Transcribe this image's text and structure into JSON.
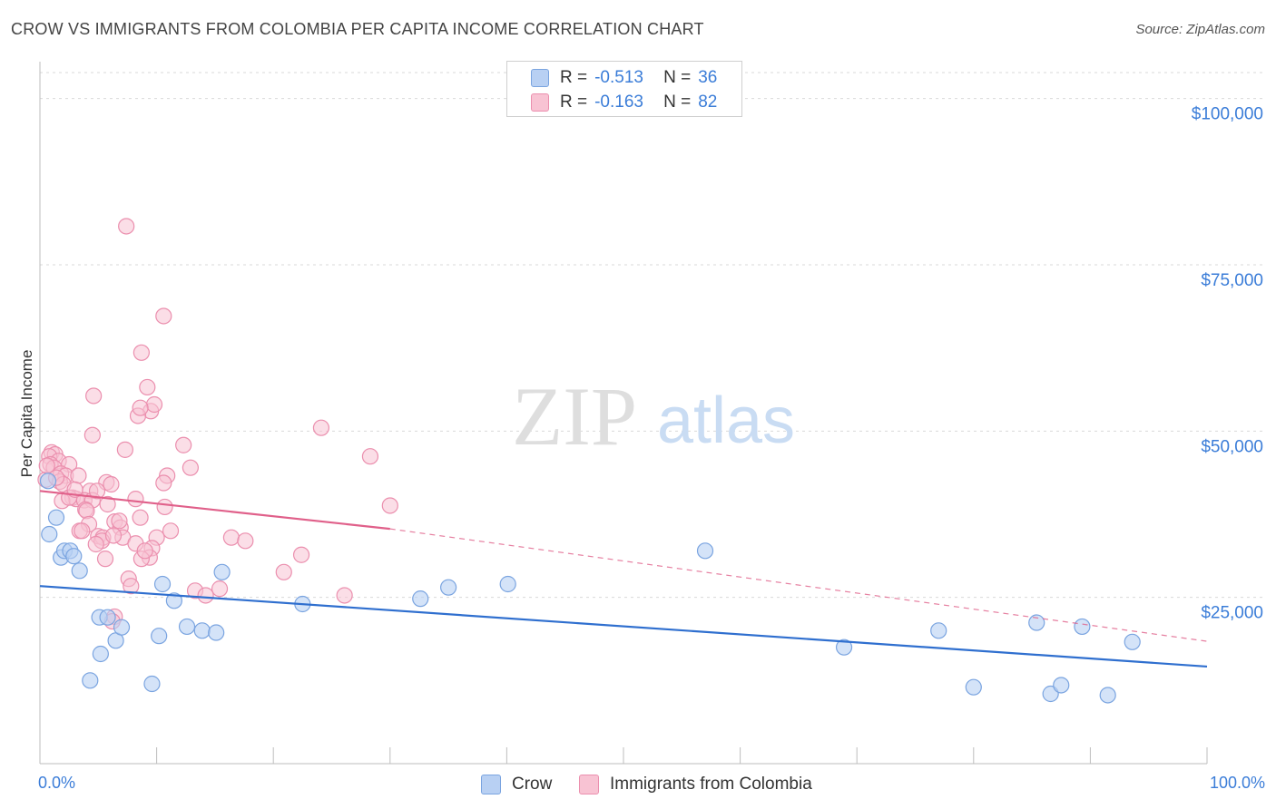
{
  "title": "CROW VS IMMIGRANTS FROM COLOMBIA PER CAPITA INCOME CORRELATION CHART",
  "source": "Source: ZipAtlas.com",
  "watermark": {
    "zip": "ZIP",
    "atlas": "atlas"
  },
  "colors": {
    "crow_fill": "#b8d0f3",
    "crow_stroke": "#7aa4e0",
    "crow_line": "#2f6fcf",
    "colombia_fill": "#f8c3d3",
    "colombia_stroke": "#eb8fae",
    "colombia_line": "#e0608a",
    "tick_text": "#3b7dd8",
    "grid": "#d9d9d9"
  },
  "legend": {
    "r_label": "R =",
    "n_label": "N =",
    "crow": {
      "r": "-0.513",
      "n": "36"
    },
    "colombia": {
      "r": "-0.163",
      "n": "82"
    }
  },
  "bottom_legend": {
    "crow": "Crow",
    "colombia": "Immigrants from Colombia"
  },
  "chart_data": {
    "type": "scatter",
    "title": "CROW VS IMMIGRANTS FROM COLOMBIA PER CAPITA INCOME CORRELATION CHART",
    "xlabel": "",
    "ylabel": "Per Capita Income",
    "xlim": [
      0,
      100
    ],
    "ylim": [
      0,
      105000
    ],
    "x_tick_labels": [
      "0.0%",
      "100.0%"
    ],
    "y_ticks": [
      25000,
      50000,
      75000,
      100000
    ],
    "y_tick_labels": [
      "$25,000",
      "$50,000",
      "$75,000",
      "$100,000"
    ],
    "grid": true,
    "series": [
      {
        "name": "Crow",
        "points": [
          [
            0.7,
            42500
          ],
          [
            0.8,
            34500
          ],
          [
            1.4,
            37000
          ],
          [
            1.8,
            31000
          ],
          [
            2.1,
            32000
          ],
          [
            2.6,
            32000
          ],
          [
            2.9,
            31200
          ],
          [
            3.4,
            29000
          ],
          [
            4.3,
            12500
          ],
          [
            5.1,
            22000
          ],
          [
            5.2,
            16500
          ],
          [
            5.8,
            22000
          ],
          [
            6.5,
            18500
          ],
          [
            7.0,
            20500
          ],
          [
            9.6,
            12000
          ],
          [
            10.2,
            19200
          ],
          [
            10.5,
            27000
          ],
          [
            11.5,
            24500
          ],
          [
            12.6,
            20600
          ],
          [
            13.9,
            20000
          ],
          [
            15.1,
            19700
          ],
          [
            15.6,
            28800
          ],
          [
            22.5,
            24000
          ],
          [
            32.6,
            24800
          ],
          [
            35.0,
            26500
          ],
          [
            40.1,
            27000
          ],
          [
            57.0,
            32000
          ],
          [
            68.9,
            17500
          ],
          [
            77.0,
            20000
          ],
          [
            80.0,
            11500
          ],
          [
            85.4,
            21200
          ],
          [
            86.6,
            10500
          ],
          [
            87.5,
            11800
          ],
          [
            89.3,
            20600
          ],
          [
            91.5,
            10300
          ],
          [
            93.6,
            18300
          ]
        ]
      },
      {
        "name": "Immigrants from Colombia",
        "points": [
          [
            7.4,
            80800
          ],
          [
            10.6,
            67300
          ],
          [
            8.7,
            61800
          ],
          [
            9.2,
            56600
          ],
          [
            4.6,
            55300
          ],
          [
            9.5,
            53000
          ],
          [
            8.4,
            52300
          ],
          [
            9.8,
            54000
          ],
          [
            8.6,
            53500
          ],
          [
            24.1,
            50500
          ],
          [
            4.5,
            49400
          ],
          [
            12.3,
            47900
          ],
          [
            7.3,
            47200
          ],
          [
            1.0,
            46800
          ],
          [
            1.3,
            46500
          ],
          [
            0.8,
            46200
          ],
          [
            1.6,
            45500
          ],
          [
            0.9,
            45000
          ],
          [
            2.5,
            45000
          ],
          [
            1.2,
            44500
          ],
          [
            12.9,
            44500
          ],
          [
            1.8,
            43600
          ],
          [
            2.2,
            43300
          ],
          [
            3.3,
            43300
          ],
          [
            10.9,
            43300
          ],
          [
            28.3,
            46200
          ],
          [
            0.5,
            42700
          ],
          [
            1.7,
            42400
          ],
          [
            2.0,
            42000
          ],
          [
            5.7,
            42300
          ],
          [
            6.1,
            42000
          ],
          [
            10.6,
            42200
          ],
          [
            4.3,
            41000
          ],
          [
            2.8,
            40000
          ],
          [
            3.1,
            39800
          ],
          [
            3.8,
            39600
          ],
          [
            4.5,
            39600
          ],
          [
            1.9,
            39500
          ],
          [
            5.8,
            39000
          ],
          [
            8.2,
            39800
          ],
          [
            10.7,
            38600
          ],
          [
            30.0,
            38800
          ],
          [
            3.9,
            38200
          ],
          [
            4.0,
            38000
          ],
          [
            6.4,
            36400
          ],
          [
            8.6,
            37000
          ],
          [
            4.2,
            36000
          ],
          [
            3.4,
            35000
          ],
          [
            6.9,
            35500
          ],
          [
            11.2,
            35000
          ],
          [
            5.0,
            34200
          ],
          [
            5.4,
            34000
          ],
          [
            7.1,
            34000
          ],
          [
            10.0,
            34000
          ],
          [
            16.4,
            34000
          ],
          [
            17.6,
            33500
          ],
          [
            5.3,
            33500
          ],
          [
            6.3,
            34300
          ],
          [
            8.2,
            33100
          ],
          [
            9.6,
            32400
          ],
          [
            3.6,
            35000
          ],
          [
            4.8,
            33000
          ],
          [
            22.4,
            31400
          ],
          [
            9.4,
            31000
          ],
          [
            5.6,
            30800
          ],
          [
            8.7,
            30800
          ],
          [
            20.9,
            28800
          ],
          [
            7.6,
            27800
          ],
          [
            7.8,
            26700
          ],
          [
            13.3,
            26000
          ],
          [
            15.4,
            26300
          ],
          [
            14.2,
            25300
          ],
          [
            26.1,
            25300
          ],
          [
            6.4,
            22100
          ],
          [
            6.2,
            21400
          ],
          [
            2.5,
            40000
          ],
          [
            3.0,
            41200
          ],
          [
            4.9,
            41000
          ],
          [
            1.4,
            43000
          ],
          [
            0.6,
            44800
          ],
          [
            6.8,
            36500
          ],
          [
            9.0,
            32000
          ]
        ]
      }
    ],
    "trendlines": [
      {
        "series": "Crow",
        "from": [
          0,
          26700
        ],
        "to": [
          100,
          14600
        ],
        "style": "solid"
      },
      {
        "series": "Immigrants from Colombia",
        "from": [
          0,
          41000
        ],
        "to": [
          30,
          35300
        ],
        "style": "solid"
      },
      {
        "series": "Immigrants from Colombia",
        "from": [
          30,
          35300
        ],
        "to": [
          100,
          18400
        ],
        "style": "dashed"
      }
    ]
  }
}
